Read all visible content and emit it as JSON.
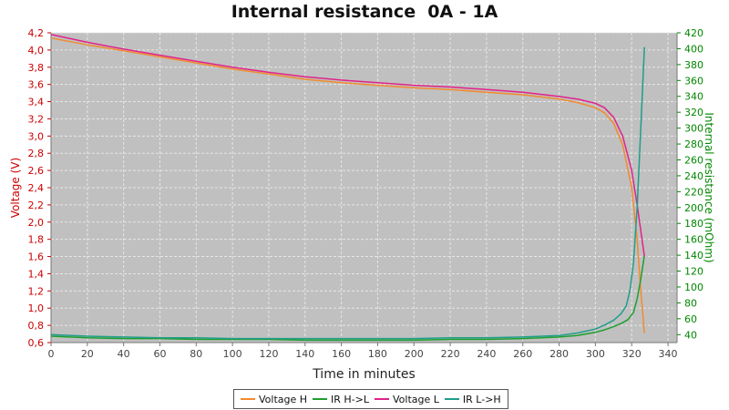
{
  "chart_data": {
    "type": "line",
    "title": "Internal resistance  0A - 1A",
    "xlabel": "Time in minutes",
    "ylabel_left": "Voltage (V)",
    "ylabel_right": "Internal resistance (mOhm)",
    "xlim": [
      0,
      345
    ],
    "ylim_left": [
      0.6,
      4.2
    ],
    "ylim_right": [
      30,
      420
    ],
    "x_ticks": [
      0,
      20,
      40,
      60,
      80,
      100,
      120,
      140,
      160,
      180,
      200,
      220,
      240,
      260,
      280,
      300,
      320,
      340
    ],
    "y_left_ticks": [
      "0,6",
      "0,8",
      "1,0",
      "1,2",
      "1,4",
      "1,6",
      "1,8",
      "2,0",
      "2,2",
      "2,4",
      "2,6",
      "2,8",
      "3,0",
      "3,2",
      "3,4",
      "3,6",
      "3,8",
      "4,0",
      "4,2"
    ],
    "y_right_ticks": [
      40,
      60,
      80,
      100,
      120,
      140,
      160,
      180,
      200,
      220,
      240,
      260,
      280,
      300,
      320,
      340,
      360,
      380,
      400,
      420
    ],
    "grid": true,
    "legend_position": "bottom",
    "colors": {
      "plot_bg": "#c0c0c0",
      "grid": "#e6e6e6",
      "left_axis": "#cc0000",
      "right_axis": "#008800"
    },
    "series": [
      {
        "name": "Voltage H",
        "axis": "left",
        "color": "#f28a2e",
        "x": [
          0,
          20,
          40,
          60,
          80,
          100,
          120,
          140,
          160,
          180,
          200,
          220,
          240,
          260,
          280,
          290,
          300,
          305,
          310,
          315,
          320,
          323,
          325,
          327
        ],
        "y": [
          4.14,
          4.06,
          3.99,
          3.92,
          3.85,
          3.78,
          3.72,
          3.66,
          3.62,
          3.59,
          3.56,
          3.54,
          3.51,
          3.48,
          3.43,
          3.39,
          3.33,
          3.27,
          3.15,
          2.9,
          2.4,
          1.8,
          1.2,
          0.71
        ]
      },
      {
        "name": "IR H->L",
        "axis": "right",
        "color": "#1f9e2f",
        "x": [
          0,
          20,
          40,
          60,
          80,
          100,
          120,
          140,
          160,
          180,
          200,
          220,
          240,
          260,
          280,
          290,
          300,
          305,
          310,
          315,
          318,
          321,
          323,
          325,
          327
        ],
        "y": [
          38,
          36,
          35,
          35,
          34,
          34,
          34,
          33,
          33,
          33,
          33,
          34,
          34,
          35,
          37,
          39,
          43,
          46,
          50,
          55,
          59,
          68,
          85,
          110,
          140
        ]
      },
      {
        "name": "Voltage L",
        "axis": "left",
        "color": "#e0228a",
        "x": [
          0,
          20,
          40,
          60,
          80,
          100,
          120,
          140,
          160,
          180,
          200,
          220,
          240,
          260,
          280,
          290,
          300,
          305,
          310,
          315,
          320,
          323,
          325,
          327
        ],
        "y": [
          4.18,
          4.09,
          4.01,
          3.94,
          3.87,
          3.8,
          3.74,
          3.69,
          3.65,
          3.62,
          3.59,
          3.57,
          3.54,
          3.51,
          3.46,
          3.43,
          3.38,
          3.33,
          3.22,
          3.0,
          2.6,
          2.2,
          1.9,
          1.6
        ]
      },
      {
        "name": "IR L->H",
        "axis": "right",
        "color": "#1f9e8a",
        "x": [
          0,
          20,
          40,
          60,
          80,
          100,
          120,
          140,
          160,
          180,
          200,
          220,
          240,
          260,
          280,
          290,
          300,
          305,
          310,
          314,
          317,
          319,
          321,
          323,
          325,
          327
        ],
        "y": [
          40,
          38,
          37,
          36,
          36,
          35,
          35,
          35,
          35,
          35,
          35,
          36,
          36,
          37,
          39,
          42,
          47,
          52,
          58,
          66,
          76,
          95,
          130,
          200,
          300,
          402
        ]
      }
    ]
  }
}
